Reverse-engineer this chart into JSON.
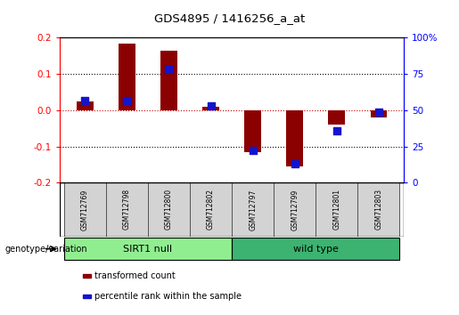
{
  "title": "GDS4895 / 1416256_a_at",
  "samples": [
    "GSM712769",
    "GSM712798",
    "GSM712800",
    "GSM712802",
    "GSM712797",
    "GSM712799",
    "GSM712801",
    "GSM712803"
  ],
  "transformed_count": [
    0.025,
    0.185,
    0.165,
    0.01,
    -0.115,
    -0.155,
    -0.04,
    -0.02
  ],
  "percentile_rank_raw": [
    57,
    57,
    78,
    53,
    22,
    13,
    36,
    49
  ],
  "groups": [
    {
      "label": "SIRT1 null",
      "start": 0,
      "end": 4,
      "color": "#90EE90"
    },
    {
      "label": "wild type",
      "start": 4,
      "end": 8,
      "color": "#3CB371"
    }
  ],
  "ylim_left": [
    -0.2,
    0.2
  ],
  "ylim_right": [
    0,
    100
  ],
  "yticks_left": [
    -0.2,
    -0.1,
    0.0,
    0.1,
    0.2
  ],
  "yticks_right": [
    0,
    25,
    50,
    75,
    100
  ],
  "bar_color": "#8B0000",
  "dot_color": "#1414CC",
  "hline_color": "#CC0000",
  "grid_color": "black",
  "genotype_label": "genotype/variation",
  "legend_items": [
    {
      "color": "#8B0000",
      "label": "transformed count"
    },
    {
      "color": "#1414CC",
      "label": "percentile rank within the sample"
    }
  ]
}
